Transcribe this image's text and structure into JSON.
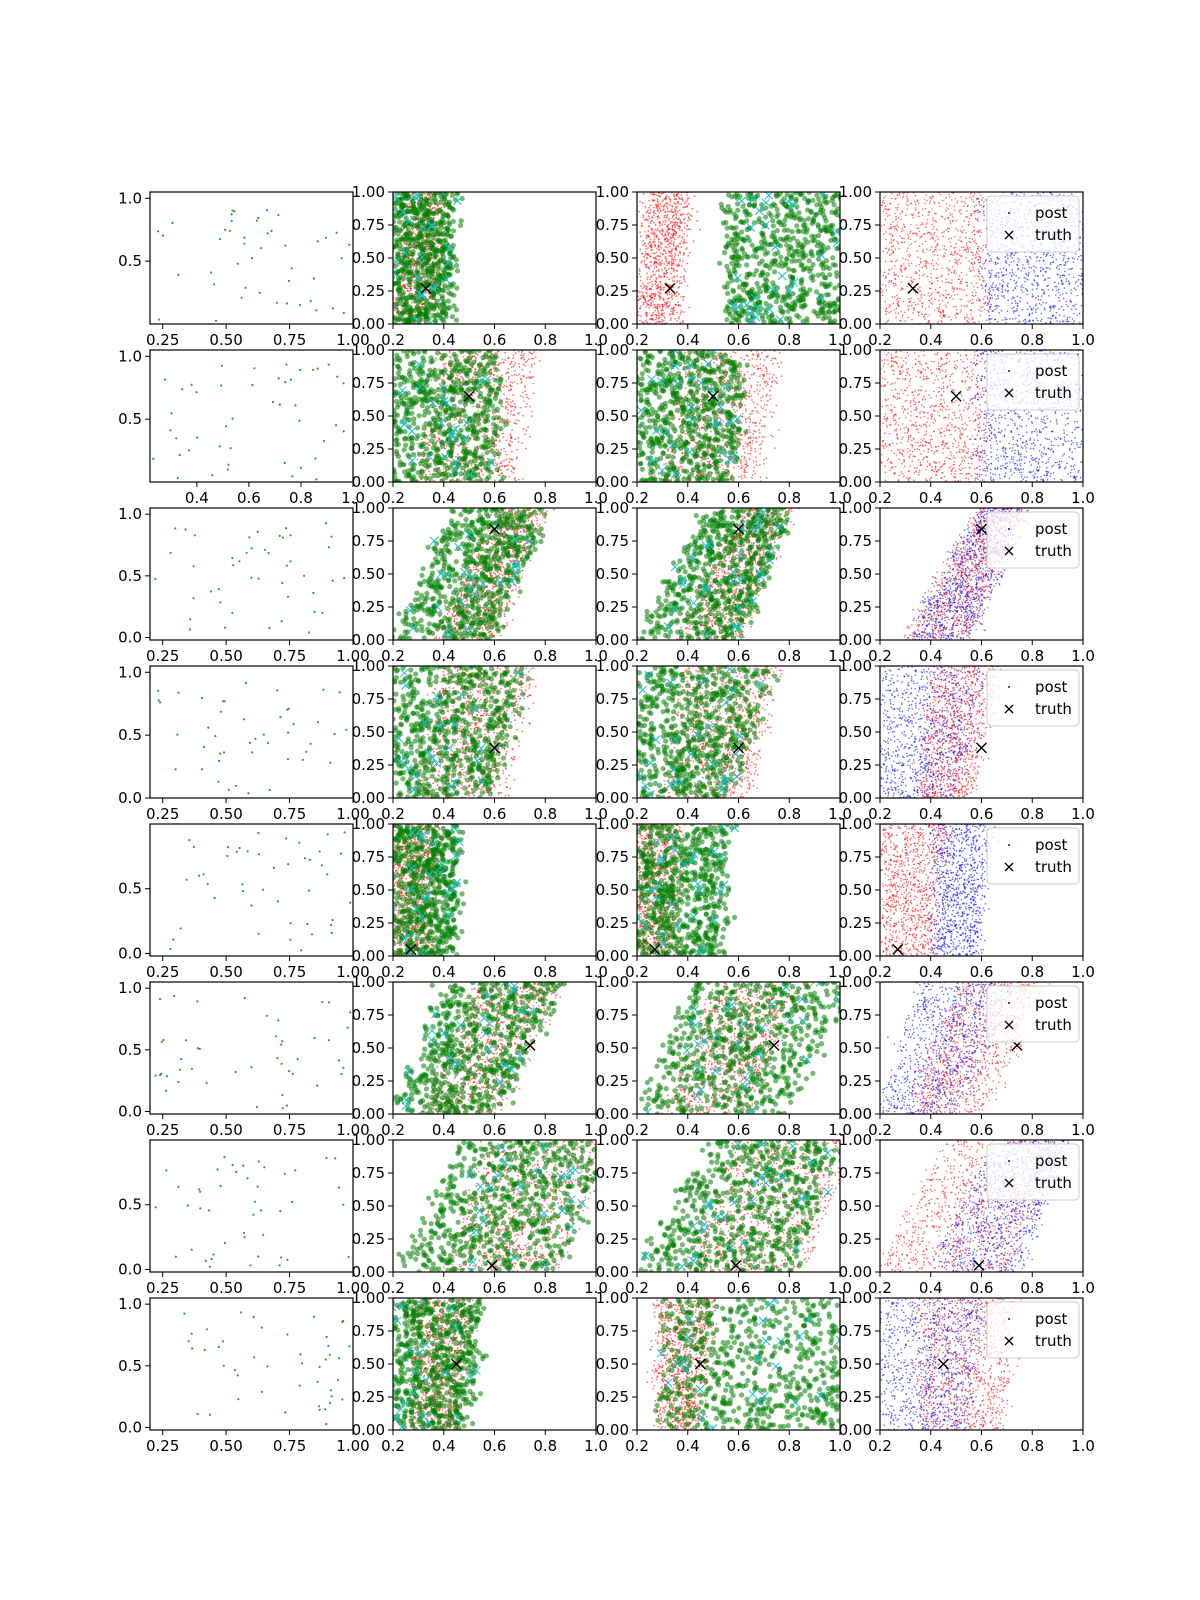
{
  "chart_data": {
    "type": "scatter",
    "layout": {
      "rows": 8,
      "cols": 4
    },
    "colors": {
      "observations": "#2ca02c",
      "post": "#ff0000",
      "post_other": "#0000ff",
      "samples_green": "#008000",
      "samples_cyan": "#17becf",
      "truth": "#000000",
      "axes": "#000000"
    },
    "legend": {
      "labels": [
        "post",
        "truth"
      ],
      "placement": "top-right",
      "panel_column": 4
    },
    "panels": [
      {
        "truth": [
          0.33,
          0.27
        ],
        "col1": {
          "xlim": [
            0.2,
            1.0
          ],
          "ylim": [
            0.0,
            1.05
          ],
          "xticks": [
            "0.25",
            "0.50",
            "0.75",
            "1.00"
          ],
          "yticks": [
            "0.5",
            "1.0"
          ]
        },
        "green_band": [
          0.2,
          0.43,
          0.0,
          0.02
        ],
        "col3_green_band": [
          0.55,
          1.0,
          0.0,
          0.0
        ],
        "red_band": [
          0.2,
          0.36,
          0.05,
          0.05
        ],
        "col4_red_band": [
          0.2,
          0.62,
          0.0,
          0.0
        ],
        "col4_blue_band": [
          0.6,
          1.0,
          0.0,
          0.0
        ],
        "legend": true
      },
      {
        "truth": [
          0.5,
          0.65
        ],
        "col1": {
          "xlim": [
            0.22,
            1.0
          ],
          "ylim": [
            0.0,
            1.05
          ],
          "xticks": [
            "0.4",
            "0.6",
            "0.8",
            "1.0"
          ],
          "yticks": [
            "0.5",
            "1.0"
          ]
        },
        "green_band": [
          0.2,
          0.62,
          0.0,
          0.0
        ],
        "col3_green_band": [
          0.2,
          0.58,
          0.0,
          0.05
        ],
        "red_band": [
          0.28,
          0.68,
          0.12,
          0.08
        ],
        "col4_red_band": [
          0.2,
          0.62,
          0.0,
          0.0
        ],
        "col4_blue_band": [
          0.58,
          1.0,
          0.0,
          0.0
        ],
        "legend": true
      },
      {
        "truth": [
          0.6,
          0.84
        ],
        "col1": {
          "xlim": [
            0.2,
            1.0
          ],
          "ylim": [
            -0.02,
            1.05
          ],
          "xticks": [
            "0.25",
            "0.50",
            "0.75",
            "1.00"
          ],
          "yticks": [
            "0.0",
            "0.5",
            "1.0"
          ]
        },
        "green_band": [
          0.2,
          0.6,
          0.25,
          0.2
        ],
        "col3_green_band": [
          0.2,
          0.62,
          0.28,
          0.18
        ],
        "red_band": [
          0.36,
          0.6,
          0.26,
          0.2
        ],
        "col4_red_band": [
          0.3,
          0.55,
          0.3,
          0.22
        ],
        "col4_blue_band": [
          0.3,
          0.55,
          0.3,
          0.22
        ],
        "legend": true
      },
      {
        "truth": [
          0.6,
          0.38
        ],
        "col1": {
          "xlim": [
            0.2,
            1.0
          ],
          "ylim": [
            0.0,
            1.05
          ],
          "xticks": [
            "0.25",
            "0.50",
            "0.75",
            "1.00"
          ],
          "yticks": [
            "0.0",
            "0.5",
            "1.0"
          ]
        },
        "green_band": [
          0.2,
          0.58,
          0.0,
          0.15
        ],
        "col3_green_band": [
          0.2,
          0.56,
          0.0,
          0.18
        ],
        "red_band": [
          0.3,
          0.64,
          0.08,
          0.12
        ],
        "col4_red_band": [
          0.35,
          0.55,
          0.05,
          0.12
        ],
        "col4_blue_band": [
          0.2,
          0.5,
          0.0,
          0.12
        ],
        "legend": true
      },
      {
        "truth": [
          0.27,
          0.05
        ],
        "col1": {
          "xlim": [
            0.2,
            1.0
          ],
          "ylim": [
            -0.02,
            1.0
          ],
          "xticks": [
            "0.25",
            "0.50",
            "0.75",
            "1.00"
          ],
          "yticks": [
            "0.0",
            "0.5"
          ]
        },
        "green_band": [
          0.2,
          0.43,
          0.0,
          0.04
        ],
        "col3_green_band": [
          0.2,
          0.53,
          0.0,
          0.04
        ],
        "red_band": [
          0.2,
          0.34,
          0.0,
          0.04
        ],
        "col4_red_band": [
          0.2,
          0.4,
          0.0,
          0.06
        ],
        "col4_blue_band": [
          0.42,
          0.58,
          0.0,
          0.04
        ],
        "legend": true
      },
      {
        "truth": [
          0.74,
          0.52
        ],
        "col1": {
          "xlim": [
            0.2,
            1.0
          ],
          "ylim": [
            -0.02,
            1.05
          ],
          "xticks": [
            "0.25",
            "0.50",
            "0.75",
            "1.00"
          ],
          "yticks": [
            "0.0",
            "0.5",
            "1.0"
          ]
        },
        "green_band": [
          0.2,
          0.62,
          0.2,
          0.25
        ],
        "col3_green_band": [
          0.2,
          0.8,
          0.22,
          0.25
        ],
        "red_band": [
          0.32,
          0.62,
          0.2,
          0.25
        ],
        "col4_red_band": [
          0.3,
          0.6,
          0.22,
          0.25
        ],
        "col4_blue_band": [
          0.2,
          0.5,
          0.15,
          0.25
        ],
        "legend": true
      },
      {
        "truth": [
          0.59,
          0.05
        ],
        "col1": {
          "xlim": [
            0.2,
            1.0
          ],
          "ylim": [
            -0.02,
            1.0
          ],
          "xticks": [
            "0.25",
            "0.50",
            "0.75",
            "1.00"
          ],
          "yticks": [
            "0.0",
            "0.5"
          ]
        },
        "green_band": [
          0.2,
          0.85,
          0.28,
          0.2
        ],
        "col3_green_band": [
          0.2,
          0.82,
          0.28,
          0.18
        ],
        "red_band": [
          0.4,
          0.85,
          0.18,
          0.2
        ],
        "col4_red_band": [
          0.2,
          0.7,
          0.25,
          0.2
        ],
        "col4_blue_band": [
          0.4,
          0.75,
          0.25,
          0.2
        ],
        "legend": true
      },
      {
        "truth": [
          0.45,
          0.5
        ],
        "col1": {
          "xlim": [
            0.2,
            1.0
          ],
          "ylim": [
            -0.02,
            1.05
          ],
          "xticks": [
            "0.25",
            "0.50",
            "0.75",
            "1.00"
          ],
          "yticks": [
            "0.0",
            "0.5",
            "1.0"
          ]
        },
        "green_band": [
          0.2,
          0.5,
          0.0,
          0.05
        ],
        "col3_green_band": [
          0.3,
          1.0,
          0.0,
          0.0
        ],
        "red_band": [
          0.28,
          0.45,
          0.0,
          0.06
        ],
        "col4_red_band": [
          0.35,
          0.68,
          0.0,
          0.08
        ],
        "col4_blue_band": [
          0.2,
          0.55,
          0.0,
          0.05
        ],
        "legend": true
      }
    ],
    "shared_axis": {
      "xlim": [
        0.2,
        1.0
      ],
      "ylim": [
        0.0,
        1.0
      ],
      "xticks": [
        "0.2",
        "0.4",
        "0.6",
        "0.8",
        "1.0"
      ],
      "yticks": [
        "0.00",
        "0.25",
        "0.50",
        "0.75",
        "1.00"
      ]
    }
  }
}
